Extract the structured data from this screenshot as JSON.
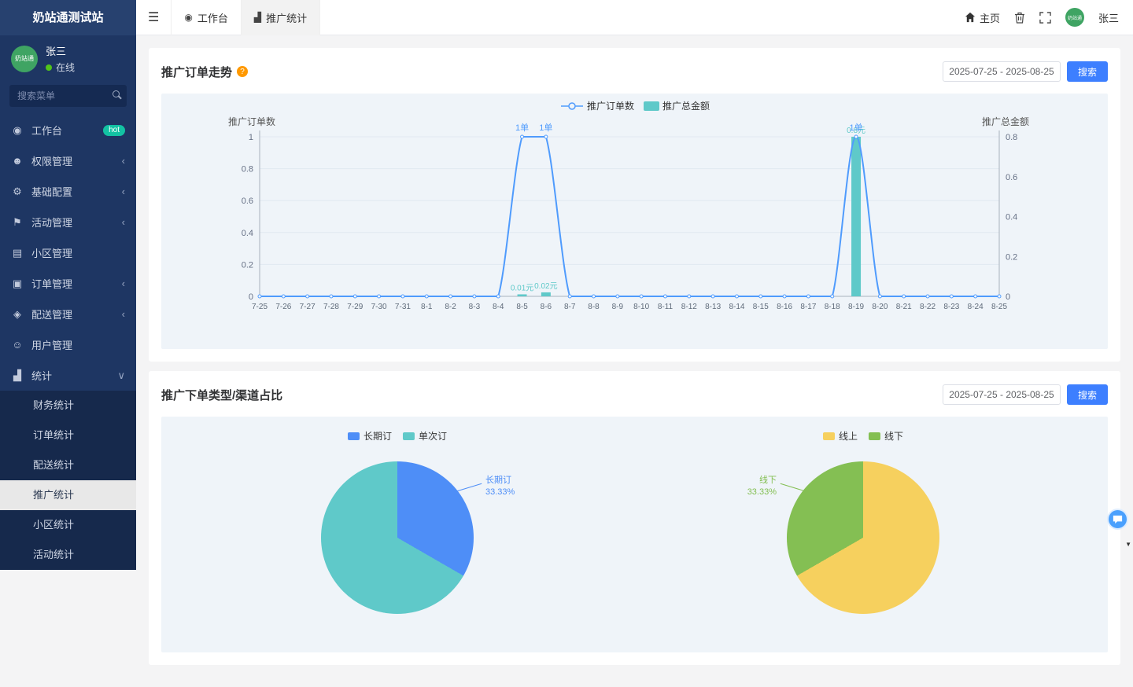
{
  "app": {
    "title": "奶站通测试站"
  },
  "colors": {
    "accent_blue": "#3d7fff",
    "line_blue": "#4f9bfd",
    "bar_teal": "#5fc9c9",
    "hot_badge": "#13c2a3",
    "online_green": "#52c41a",
    "avatar_green": "#3fa463"
  },
  "sidebar": {
    "user": {
      "name": "张三",
      "status": "在线",
      "avatar_text": "奶站通"
    },
    "search_placeholder": "搜索菜单",
    "items": [
      {
        "label": "工作台",
        "icon": "dashboard-icon",
        "glyph": "◉",
        "badge": "hot"
      },
      {
        "label": "权限管理",
        "icon": "users-icon",
        "glyph": "☻",
        "chevron": "‹"
      },
      {
        "label": "基础配置",
        "icon": "gear-icon",
        "glyph": "⚙",
        "chevron": "‹"
      },
      {
        "label": "活动管理",
        "icon": "megaphone-icon",
        "glyph": "⚑",
        "chevron": "‹"
      },
      {
        "label": "小区管理",
        "icon": "building-icon",
        "glyph": "▤"
      },
      {
        "label": "订单管理",
        "icon": "order-icon",
        "glyph": "▣",
        "chevron": "‹"
      },
      {
        "label": "配送管理",
        "icon": "delivery-icon",
        "glyph": "◈",
        "chevron": "‹"
      },
      {
        "label": "用户管理",
        "icon": "user-icon",
        "glyph": "☺"
      },
      {
        "label": "统计",
        "icon": "chart-icon",
        "glyph": "▟",
        "chevron": "∨",
        "expanded": true
      }
    ],
    "sub_items": [
      {
        "label": "财务统计"
      },
      {
        "label": "订单统计"
      },
      {
        "label": "配送统计"
      },
      {
        "label": "推广统计",
        "active": true
      },
      {
        "label": "小区统计"
      },
      {
        "label": "活动统计"
      }
    ]
  },
  "topbar": {
    "tabs": [
      {
        "label": "工作台",
        "glyph": "◉",
        "icon": "dashboard-icon",
        "active": false
      },
      {
        "label": "推广统计",
        "glyph": "▟",
        "icon": "chart-icon",
        "active": true
      }
    ],
    "home_label": "主页",
    "user_name": "张三",
    "avatar_text": "奶站通"
  },
  "section1": {
    "title": "推广订单走势",
    "help": "?",
    "date_range": "2025-07-25 - 2025-08-25",
    "search_label": "搜索"
  },
  "section2": {
    "title": "推广下单类型/渠道占比",
    "date_range": "2025-07-25 - 2025-08-25",
    "search_label": "搜索"
  },
  "chart_data": [
    {
      "type": "line",
      "title": "推广订单走势",
      "x": [
        "7-25",
        "7-26",
        "7-27",
        "7-28",
        "7-29",
        "7-30",
        "7-31",
        "8-1",
        "8-2",
        "8-3",
        "8-4",
        "8-5",
        "8-6",
        "8-7",
        "8-8",
        "8-9",
        "8-10",
        "8-11",
        "8-12",
        "8-13",
        "8-14",
        "8-15",
        "8-16",
        "8-17",
        "8-18",
        "8-19",
        "8-20",
        "8-21",
        "8-22",
        "8-23",
        "8-24",
        "8-25"
      ],
      "legend": [
        {
          "label": "推广订单数",
          "kind": "line",
          "color": "#4f9bfd"
        },
        {
          "label": "推广总金额",
          "kind": "bar",
          "color": "#5fc9c9"
        }
      ],
      "left_axis": {
        "name": "推广订单数",
        "min": 0,
        "max": 1,
        "ticks": [
          "0",
          "0.2",
          "0.4",
          "0.6",
          "0.8",
          "1"
        ]
      },
      "right_axis": {
        "name": "推广总金额",
        "min": 0,
        "max": 0.8,
        "ticks": [
          "0",
          "0.2",
          "0.4",
          "0.6",
          "0.8"
        ]
      },
      "series": [
        {
          "name": "推广订单数",
          "kind": "line",
          "axis": "left",
          "color": "#4f9bfd",
          "values": [
            0,
            0,
            0,
            0,
            0,
            0,
            0,
            0,
            0,
            0,
            0,
            1,
            1,
            0,
            0,
            0,
            0,
            0,
            0,
            0,
            0,
            0,
            0,
            0,
            0,
            1,
            0,
            0,
            0,
            0,
            0,
            0
          ],
          "point_labels": [
            {
              "i": 11,
              "text": "1单"
            },
            {
              "i": 12,
              "text": "1单"
            },
            {
              "i": 25,
              "text": "1单"
            }
          ]
        },
        {
          "name": "推广总金额",
          "kind": "bar",
          "axis": "right",
          "color": "#5fc9c9",
          "values": [
            0,
            0,
            0,
            0,
            0,
            0,
            0,
            0,
            0,
            0,
            0,
            0.01,
            0.02,
            0,
            0,
            0,
            0,
            0,
            0,
            0,
            0,
            0,
            0,
            0,
            0,
            0.8,
            0,
            0,
            0,
            0,
            0,
            0
          ],
          "point_labels": [
            {
              "i": 11,
              "text": "0.01元"
            },
            {
              "i": 12,
              "text": "0.02元"
            },
            {
              "i": 25,
              "text": "0.8元"
            }
          ]
        }
      ]
    },
    {
      "type": "pie",
      "title": "推广下单类型占比",
      "legend": [
        "长期订",
        "单次订"
      ],
      "slices": [
        {
          "name": "长期订",
          "value": 33.33,
          "color": "#4e8ef7"
        },
        {
          "name": "单次订",
          "value": 66.67,
          "color": "#5fc9c9"
        }
      ],
      "callout": {
        "name": "长期订",
        "pct": "33.33%",
        "color": "#4e8ef7",
        "side": "right"
      }
    },
    {
      "type": "pie",
      "title": "推广下单渠道占比",
      "legend": [
        "线上",
        "线下"
      ],
      "slices": [
        {
          "name": "线上",
          "value": 66.67,
          "color": "#f6d05e"
        },
        {
          "name": "线下",
          "value": 33.33,
          "color": "#84bf53"
        }
      ],
      "callout": {
        "name": "线下",
        "pct": "33.33%",
        "color": "#84bf53",
        "side": "left"
      }
    }
  ]
}
